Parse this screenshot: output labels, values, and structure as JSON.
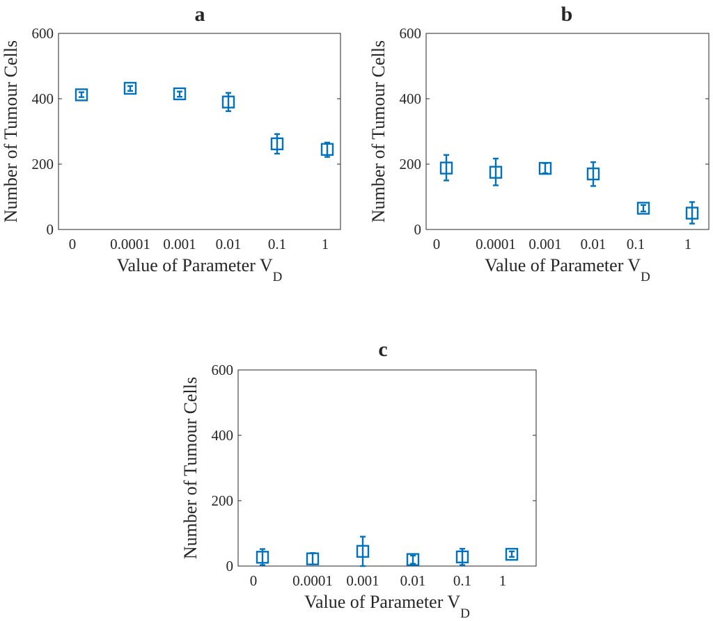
{
  "chart_data": [
    {
      "type": "errorbar",
      "title": "a",
      "xlabel": "Value of Parameter V",
      "xlabel_subscript": "D",
      "ylabel": "Number of Tumour Cells",
      "categories": [
        "0",
        "0.0001",
        "0.001",
        "0.01",
        "0.1",
        "1"
      ],
      "ylim": [
        0,
        600
      ],
      "yticks": [
        "0",
        "200",
        "400",
        "600"
      ],
      "grid": false,
      "marker": "square",
      "color": "#0072BD",
      "series": [
        {
          "values": [
            412,
            432,
            415,
            390,
            262,
            245
          ],
          "error_low": [
            405,
            424,
            406,
            362,
            232,
            222
          ],
          "error_high": [
            420,
            439,
            422,
            418,
            292,
            266
          ]
        }
      ]
    },
    {
      "type": "errorbar",
      "title": "b",
      "xlabel": "Value of Parameter V",
      "xlabel_subscript": "D",
      "ylabel": "Number of Tumour Cells",
      "categories": [
        "0",
        "0.0001",
        "0.001",
        "0.01",
        "0.1",
        "1"
      ],
      "ylim": [
        0,
        600
      ],
      "yticks": [
        "0",
        "200",
        "400",
        "600"
      ],
      "grid": false,
      "marker": "square",
      "color": "#0072BD",
      "series": [
        {
          "values": [
            188,
            175,
            187,
            170,
            65,
            50
          ],
          "error_low": [
            150,
            135,
            172,
            133,
            55,
            18
          ],
          "error_high": [
            228,
            217,
            203,
            206,
            75,
            84
          ]
        }
      ]
    },
    {
      "type": "errorbar",
      "title": "c",
      "xlabel": "Value of Parameter V",
      "xlabel_subscript": "D",
      "ylabel": "Number of Tumour Cells",
      "categories": [
        "0",
        "0.0001",
        "0.001",
        "0.01",
        "0.1",
        "1"
      ],
      "ylim": [
        0,
        600
      ],
      "yticks": [
        "0",
        "200",
        "400",
        "600"
      ],
      "grid": false,
      "marker": "square",
      "color": "#0072BD",
      "series": [
        {
          "values": [
            27,
            22,
            45,
            20,
            28,
            36
          ],
          "error_low": [
            3,
            5,
            0,
            7,
            3,
            28
          ],
          "error_high": [
            52,
            40,
            90,
            32,
            53,
            45
          ]
        }
      ]
    }
  ]
}
